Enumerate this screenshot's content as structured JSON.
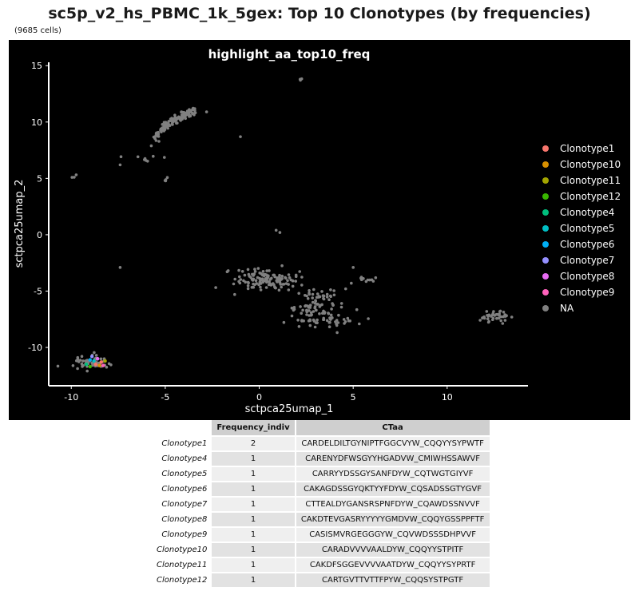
{
  "title": "sc5p_v2_hs_PBMC_1k_5gex: Top 10 Clonotypes (by frequencies)",
  "subtitle": "(9685 cells)",
  "chart_data": {
    "type": "scatter",
    "title": "highlight_aa_top10_freq",
    "xlabel": "sctpca25umap_1",
    "ylabel": "sctpca25umap_2",
    "xlim": [
      -11.2,
      14.3
    ],
    "ylim": [
      -13.4,
      15.3
    ],
    "xticks": [
      -10,
      -5,
      0,
      5,
      10
    ],
    "yticks": [
      15,
      10,
      5,
      0,
      -5,
      -10
    ],
    "background": "#000000",
    "legend_position": "right",
    "legend": [
      {
        "label": "Clonotype1",
        "color": "#F8766D"
      },
      {
        "label": "Clonotype10",
        "color": "#D89000"
      },
      {
        "label": "Clonotype11",
        "color": "#A3A500"
      },
      {
        "label": "Clonotype12",
        "color": "#39B600"
      },
      {
        "label": "Clonotype4",
        "color": "#00BF7D"
      },
      {
        "label": "Clonotype5",
        "color": "#00BFC4"
      },
      {
        "label": "Clonotype6",
        "color": "#00B0F6"
      },
      {
        "label": "Clonotype7",
        "color": "#9590FF"
      },
      {
        "label": "Clonotype8",
        "color": "#E76BF3"
      },
      {
        "label": "Clonotype9",
        "color": "#FF62BC"
      },
      {
        "label": "NA",
        "color": "#808080"
      }
    ],
    "clusters": [
      {
        "label": "NA",
        "cx": -4.9,
        "cy": 10.1,
        "sx": 1.0,
        "sy": 0.7,
        "n": 150,
        "arc": true
      },
      {
        "label": "NA",
        "cx": -6.2,
        "cy": 6.8,
        "sx": 0.5,
        "sy": 0.2,
        "n": 8
      },
      {
        "label": "NA",
        "cx": -9.8,
        "cy": 5.1,
        "sx": 0.08,
        "sy": 0.08,
        "n": 3
      },
      {
        "label": "NA",
        "cx": -5.0,
        "cy": 4.9,
        "sx": 0.05,
        "sy": 0.15,
        "n": 4
      },
      {
        "label": "NA",
        "cx": 2.2,
        "cy": 13.8,
        "sx": 0.05,
        "sy": 0.05,
        "n": 3
      },
      {
        "label": "NA",
        "cx": 0.4,
        "cy": -4.0,
        "sx": 0.8,
        "sy": 0.45,
        "n": 140
      },
      {
        "label": "NA",
        "cx": 2.9,
        "cy": -6.3,
        "sx": 0.7,
        "sy": 0.9,
        "n": 90
      },
      {
        "label": "NA",
        "cx": 3.6,
        "cy": -7.6,
        "sx": 0.9,
        "sy": 0.2,
        "n": 35
      },
      {
        "label": "NA",
        "cx": 6.0,
        "cy": -4.0,
        "sx": 0.4,
        "sy": 0.15,
        "n": 10
      },
      {
        "label": "NA",
        "cx": 12.6,
        "cy": -7.2,
        "sx": 0.35,
        "sy": 0.3,
        "n": 40
      },
      {
        "label": "NA",
        "cx": -8.9,
        "cy": -11.4,
        "sx": 0.45,
        "sy": 0.3,
        "n": 60
      }
    ],
    "isolated_points": [
      {
        "x": -7.4,
        "y": 6.2
      },
      {
        "x": -2.8,
        "y": 10.9
      },
      {
        "x": -1.0,
        "y": 8.7
      },
      {
        "x": -7.4,
        "y": -2.9
      },
      {
        "x": 0.9,
        "y": 0.4
      },
      {
        "x": 1.1,
        "y": 0.2
      },
      {
        "x": 5.0,
        "y": -2.9
      },
      {
        "x": 4.9,
        "y": -4.3
      },
      {
        "x": 4.6,
        "y": -4.8
      },
      {
        "x": 2.2,
        "y": 13.8
      }
    ],
    "highlighted_points": [
      {
        "label": "Clonotype1",
        "x": -8.7,
        "y": -11.5
      },
      {
        "label": "Clonotype1",
        "x": -8.4,
        "y": -11.3
      },
      {
        "label": "Clonotype10",
        "x": -8.5,
        "y": -11.6
      },
      {
        "label": "Clonotype11",
        "x": -8.2,
        "y": -11.2
      },
      {
        "label": "Clonotype12",
        "x": -9.0,
        "y": -11.7
      },
      {
        "label": "Clonotype4",
        "x": -9.2,
        "y": -11.5
      },
      {
        "label": "Clonotype5",
        "x": -8.8,
        "y": -11.2
      },
      {
        "label": "Clonotype6",
        "x": -9.0,
        "y": -11.1
      },
      {
        "label": "Clonotype7",
        "x": -8.9,
        "y": -10.8
      },
      {
        "label": "Clonotype8",
        "x": -8.6,
        "y": -11.0
      },
      {
        "label": "Clonotype9",
        "x": -8.3,
        "y": -11.6
      }
    ]
  },
  "table": {
    "headers": [
      "Frequency_indiv",
      "CTaa"
    ],
    "rows": [
      {
        "name": "Clonotype1",
        "freq": "2",
        "ctaa": "CARDELDILTGYNIPTFGGCVYW_CQQYYSYPWTF"
      },
      {
        "name": "Clonotype4",
        "freq": "1",
        "ctaa": "CARENYDFWSGYYHGADVW_CMIWHSSAWVF"
      },
      {
        "name": "Clonotype5",
        "freq": "1",
        "ctaa": "CARRYYDSSGYSANFDYW_CQTWGTGIYVF"
      },
      {
        "name": "Clonotype6",
        "freq": "1",
        "ctaa": "CAKAGDSSGYQKTYYFDYW_CQSADSSGTYGVF"
      },
      {
        "name": "Clonotype7",
        "freq": "1",
        "ctaa": "CTTEALDYGANSRSPNFDYW_CQAWDSSNVVF"
      },
      {
        "name": "Clonotype8",
        "freq": "1",
        "ctaa": "CAKDTEVGASRYYYYYGMDVW_CQQYGSSPPFTF"
      },
      {
        "name": "Clonotype9",
        "freq": "1",
        "ctaa": "CASISMVRGEGGGYW_CQVWDSSSDHPVVF"
      },
      {
        "name": "Clonotype10",
        "freq": "1",
        "ctaa": "CARADVVVVAALDYW_CQQYYSTPITF"
      },
      {
        "name": "Clonotype11",
        "freq": "1",
        "ctaa": "CAKDFSGGEVVVVAATDYW_CQQYYSYPRTF"
      },
      {
        "name": "Clonotype12",
        "freq": "1",
        "ctaa": "CARTGVTTVTTFPYW_CQQSYSTPGTF"
      }
    ]
  }
}
